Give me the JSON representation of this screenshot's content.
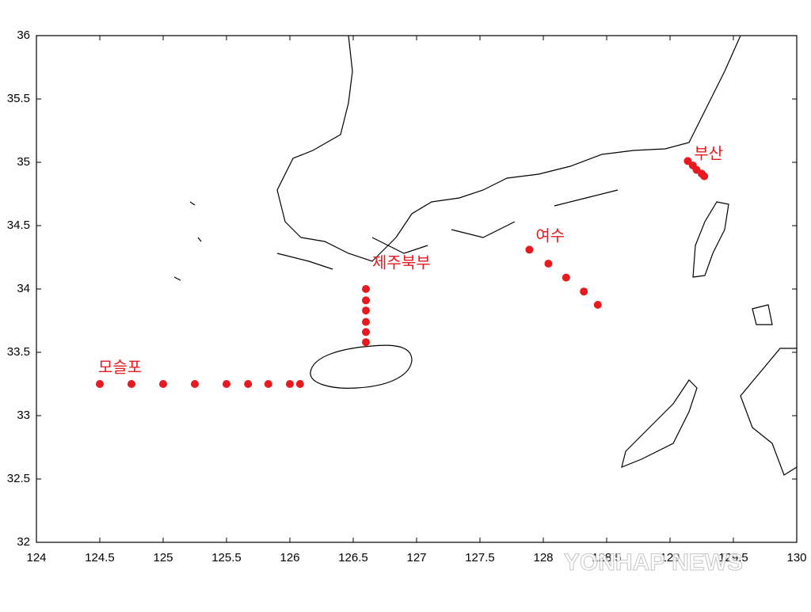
{
  "chart_data": {
    "type": "scatter",
    "xlim": [
      124,
      130
    ],
    "ylim": [
      32,
      36
    ],
    "xticks": [
      124,
      124.5,
      125,
      125.5,
      126,
      126.5,
      127,
      127.5,
      128,
      128.5,
      129,
      129.5,
      130
    ],
    "yticks": [
      32,
      32.5,
      33,
      33.5,
      34,
      34.5,
      35,
      35.5,
      36
    ],
    "series": [
      {
        "name": "모슬포",
        "color": "#e8191f",
        "x": [
          124.5,
          124.75,
          125,
          125.25,
          125.5,
          125.67,
          125.83,
          126,
          126.08
        ],
        "values": [
          33.25,
          33.25,
          33.25,
          33.25,
          33.25,
          33.25,
          33.25,
          33.25,
          33.25
        ]
      },
      {
        "name": "제주북부",
        "color": "#e8191f",
        "x": [
          126.6,
          126.6,
          126.6,
          126.6,
          126.6,
          126.6
        ],
        "values": [
          34.0,
          33.91,
          33.83,
          33.74,
          33.66,
          33.58
        ]
      },
      {
        "name": "여수",
        "color": "#e8191f",
        "x": [
          127.89,
          128.04,
          128.18,
          128.32,
          128.43
        ],
        "values": [
          34.31,
          34.2,
          34.09,
          33.98,
          33.875
        ]
      },
      {
        "name": "부산",
        "color": "#e8191f",
        "x": [
          129.14,
          129.18,
          129.21,
          129.25,
          129.27
        ],
        "values": [
          35.01,
          34.975,
          34.94,
          34.91,
          34.89
        ]
      }
    ],
    "watermark": "YONHAP NEWS"
  }
}
